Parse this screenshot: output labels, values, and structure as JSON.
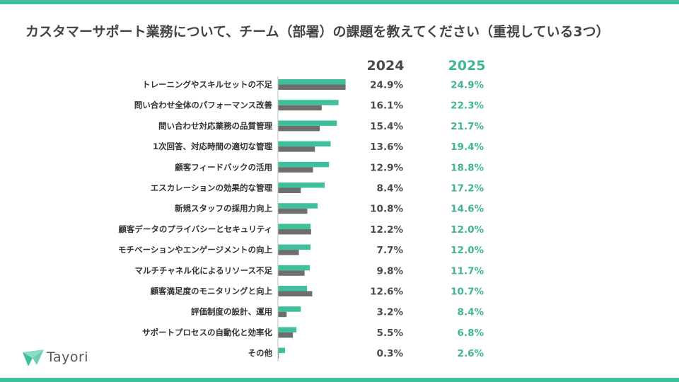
{
  "title": "カスタマーサポート業務について、チーム（部署）の課題を教えてください（重視している3つ）",
  "brand": {
    "name": "Tayori"
  },
  "colors": {
    "accent": "#3fbf9c",
    "accent_text": "#3fb595",
    "gray_bar": "#6e6e6e",
    "gray_text": "#4a4a4a"
  },
  "chart_data": {
    "type": "bar",
    "orientation": "horizontal",
    "title": "カスタマーサポート業務について、チーム（部署）の課題を教えてください（重視している3つ）",
    "unit": "%",
    "categories": [
      "トレーニングやスキルセットの不足",
      "問い合わせ全体のパフォーマンス改善",
      "問い合わせ対応業務の品質管理",
      "1次回答、対応時間の適切な管理",
      "顧客フィードバックの活用",
      "エスカレーションの効果的な管理",
      "新規スタッフの採用力向上",
      "顧客データのプライバシーとセキュリティ",
      "モチベーションやエンゲージメントの向上",
      "マルチチャネル化によるリソース不足",
      "顧客満足度のモニタリングと向上",
      "評価制度の設計、運用",
      "サポートプロセスの自動化と効率化",
      "その他"
    ],
    "series": [
      {
        "name": "2025",
        "values": [
          24.9,
          22.3,
          21.7,
          19.4,
          18.8,
          17.2,
          14.6,
          12.0,
          12.0,
          11.7,
          10.7,
          8.4,
          6.8,
          2.6
        ],
        "labels": [
          "24.9%",
          "22.3%",
          "21.7%",
          "19.4%",
          "18.8%",
          "17.2%",
          "14.6%",
          "12.0%",
          "12.0%",
          "11.7%",
          "10.7%",
          "8.4%",
          "6.8%",
          "2.6%"
        ]
      },
      {
        "name": "2024",
        "values": [
          24.9,
          16.1,
          15.4,
          13.6,
          12.9,
          8.4,
          10.8,
          12.2,
          7.7,
          9.8,
          12.6,
          3.2,
          5.5,
          0.3
        ],
        "labels": [
          "24.9%",
          "16.1%",
          "15.4%",
          "13.6%",
          "12.9%",
          "8.4%",
          "10.8%",
          "12.2%",
          "7.7%",
          "9.8%",
          "12.6%",
          "3.2%",
          "5.5%",
          "0.3%"
        ]
      }
    ],
    "xlim": [
      0,
      25
    ],
    "grid": false,
    "legend": "top-right"
  }
}
